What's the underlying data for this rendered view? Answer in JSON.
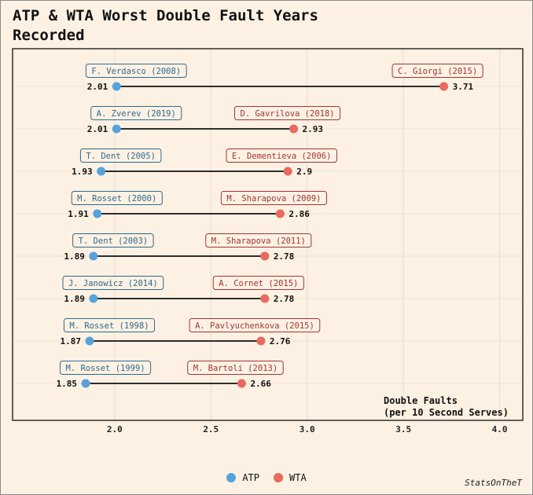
{
  "title": "ATP & WTA Worst Double Fault Years Recorded",
  "caption": "StatsOnTheT",
  "colors": {
    "atp": "#56a3dc",
    "wta": "#e8695e",
    "atp_label": "#2e6a8e",
    "wta_label": "#a03535",
    "background": "#fdf1e3"
  },
  "legend": [
    {
      "name": "ATP",
      "color": "#56a3dc"
    },
    {
      "name": "WTA",
      "color": "#e8695e"
    }
  ],
  "chart_data": {
    "type": "dumbbell",
    "xlabel": "Double Faults\n(per 10 Second Serves)",
    "xlim": [
      1.47,
      4.12
    ],
    "xticks": [
      2.0,
      2.5,
      3.0,
      3.5,
      4.0
    ],
    "xtick_labels": [
      "2.0",
      "2.5",
      "3.0",
      "3.5",
      "4.0"
    ],
    "grid": true,
    "legend_position": "bottom",
    "rows": [
      {
        "atp_label": "F. Verdasco (2008)",
        "atp": 2.01,
        "wta_label": "C. Giorgi (2015)",
        "wta": 3.71
      },
      {
        "atp_label": "A. Zverev (2019)",
        "atp": 2.01,
        "wta_label": "D. Gavrilova (2018)",
        "wta": 2.93
      },
      {
        "atp_label": "T. Dent (2005)",
        "atp": 1.93,
        "wta_label": "E. Dementieva (2006)",
        "wta": 2.9
      },
      {
        "atp_label": "M. Rosset (2000)",
        "atp": 1.91,
        "wta_label": "M. Sharapova (2009)",
        "wta": 2.86
      },
      {
        "atp_label": "T. Dent (2003)",
        "atp": 1.89,
        "wta_label": "M. Sharapova (2011)",
        "wta": 2.78
      },
      {
        "atp_label": "J. Janowicz (2014)",
        "atp": 1.89,
        "wta_label": "A. Cornet (2015)",
        "wta": 2.78
      },
      {
        "atp_label": "M. Rosset (1998)",
        "atp": 1.87,
        "wta_label": "A. Pavlyuchenkova (2015)",
        "wta": 2.76
      },
      {
        "atp_label": "M. Rosset (1999)",
        "atp": 1.85,
        "wta_label": "M. Bartoli (2013)",
        "wta": 2.66
      }
    ]
  }
}
